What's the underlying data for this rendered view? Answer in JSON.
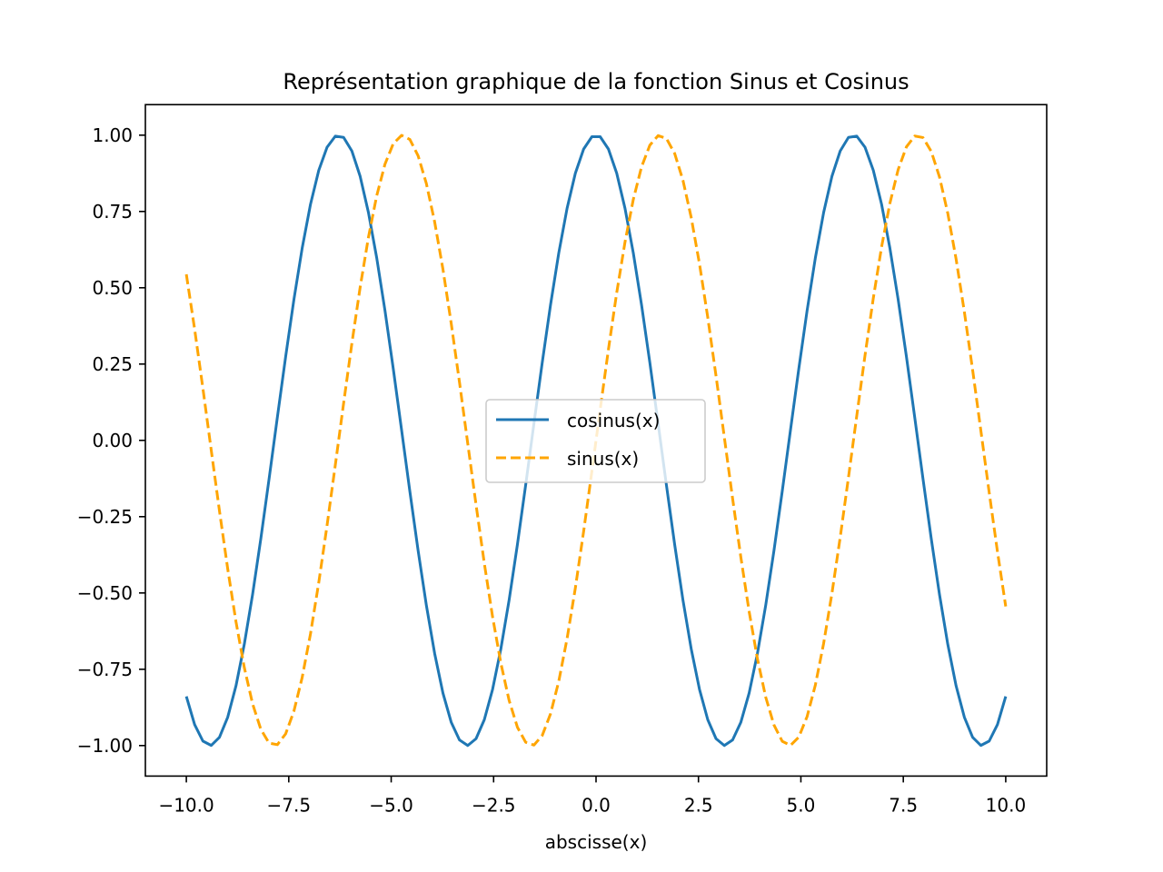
{
  "chart_data": {
    "type": "line",
    "title": "Représentation graphique de la fonction Sinus et Cosinus",
    "xlabel": "abscisse(x)",
    "ylabel": "",
    "xlim": [
      -11.0,
      11.0
    ],
    "ylim": [
      -1.1,
      1.1
    ],
    "x_ticks": [
      -10.0,
      -7.5,
      -5.0,
      -2.5,
      0.0,
      2.5,
      5.0,
      7.5,
      10.0
    ],
    "x_tick_labels": [
      "−10.0",
      "−7.5",
      "−5.0",
      "−2.5",
      "0.0",
      "2.5",
      "5.0",
      "7.5",
      "10.0"
    ],
    "y_ticks": [
      -1.0,
      -0.75,
      -0.5,
      -0.25,
      0.0,
      0.25,
      0.5,
      0.75,
      1.0
    ],
    "y_tick_labels": [
      "−1.00",
      "−0.75",
      "−0.50",
      "−0.25",
      "0.00",
      "0.25",
      "0.50",
      "0.75",
      "1.00"
    ],
    "grid": false,
    "legend_position": "center",
    "x_range": [
      -10,
      10
    ],
    "point_count": 100,
    "series": [
      {
        "name": "cosinus(x)",
        "function": "cos",
        "color": "#1f77b4",
        "style": "solid"
      },
      {
        "name": "sinus(x)",
        "function": "sin",
        "color": "#ffa500",
        "style": "dashed"
      }
    ]
  }
}
